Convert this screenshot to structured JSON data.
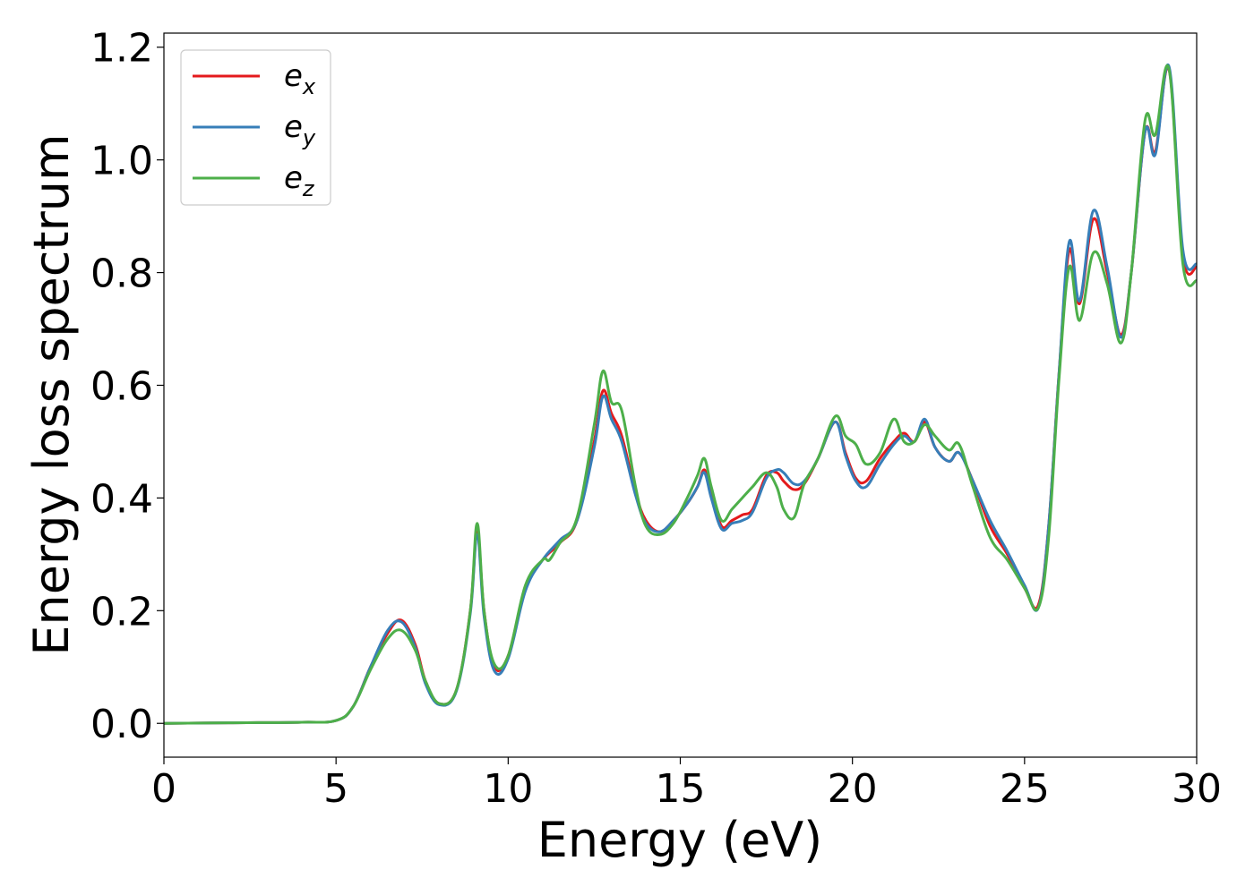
{
  "chart_data": {
    "type": "line",
    "xlabel": "Energy (eV)",
    "ylabel": "Energy loss spectrum",
    "xlim": [
      0,
      30
    ],
    "ylim": [
      -0.06,
      1.225
    ],
    "xticks": [
      0,
      5,
      10,
      15,
      20,
      25,
      30
    ],
    "xtick_labels": [
      "0",
      "5",
      "10",
      "15",
      "20",
      "25",
      "30"
    ],
    "yticks": [
      0.0,
      0.2,
      0.4,
      0.6,
      0.8,
      1.0,
      1.2
    ],
    "ytick_labels": [
      "0.0",
      "0.2",
      "0.4",
      "0.6",
      "0.8",
      "1.0",
      "1.2"
    ],
    "grid": false,
    "legend_position": "top-left",
    "series": [
      {
        "name": "e_x",
        "label_base": "e",
        "label_sub": "x",
        "color": "#e41a1c",
        "x": [
          0,
          2,
          4,
          5,
          5.5,
          6,
          6.5,
          6.9,
          7.3,
          7.6,
          8.0,
          8.5,
          8.9,
          9.1,
          9.3,
          9.6,
          10.0,
          10.5,
          11.0,
          11.5,
          12.0,
          12.5,
          12.75,
          13.0,
          13.3,
          13.7,
          14.0,
          14.4,
          14.8,
          15.2,
          15.5,
          15.7,
          15.9,
          16.2,
          16.5,
          16.8,
          17.1,
          17.5,
          17.8,
          18.0,
          18.3,
          18.6,
          19.0,
          19.5,
          19.8,
          20.1,
          20.4,
          20.8,
          21.2,
          21.5,
          21.8,
          22.1,
          22.4,
          22.8,
          23.1,
          23.5,
          24.0,
          24.5,
          25.0,
          25.4,
          25.7,
          26.0,
          26.3,
          26.6,
          27.0,
          27.4,
          27.8,
          28.1,
          28.5,
          28.8,
          29.2,
          29.6,
          30.0
        ],
        "y": [
          0.0,
          0.001,
          0.002,
          0.005,
          0.03,
          0.1,
          0.16,
          0.183,
          0.14,
          0.075,
          0.035,
          0.06,
          0.2,
          0.34,
          0.2,
          0.1,
          0.12,
          0.24,
          0.29,
          0.32,
          0.36,
          0.5,
          0.59,
          0.55,
          0.51,
          0.41,
          0.36,
          0.34,
          0.36,
          0.39,
          0.42,
          0.45,
          0.41,
          0.35,
          0.36,
          0.37,
          0.38,
          0.44,
          0.445,
          0.43,
          0.415,
          0.425,
          0.47,
          0.535,
          0.48,
          0.435,
          0.43,
          0.47,
          0.5,
          0.515,
          0.5,
          0.535,
          0.49,
          0.465,
          0.48,
          0.43,
          0.35,
          0.3,
          0.24,
          0.21,
          0.35,
          0.62,
          0.84,
          0.745,
          0.895,
          0.8,
          0.69,
          0.8,
          1.05,
          1.015,
          1.16,
          0.83,
          0.81
        ]
      },
      {
        "name": "e_y",
        "label_base": "e",
        "label_sub": "y",
        "color": "#377eb8",
        "x": [
          0,
          2,
          4,
          5,
          5.5,
          6,
          6.5,
          6.9,
          7.3,
          7.6,
          8.0,
          8.5,
          8.9,
          9.1,
          9.3,
          9.6,
          10.0,
          10.5,
          11.0,
          11.5,
          12.0,
          12.5,
          12.75,
          13.0,
          13.3,
          13.7,
          14.0,
          14.4,
          14.8,
          15.2,
          15.5,
          15.7,
          15.9,
          16.2,
          16.5,
          16.8,
          17.1,
          17.5,
          17.8,
          18.0,
          18.3,
          18.6,
          19.0,
          19.5,
          19.8,
          20.1,
          20.4,
          20.8,
          21.2,
          21.5,
          21.8,
          22.1,
          22.4,
          22.8,
          23.1,
          23.5,
          24.0,
          24.5,
          25.0,
          25.4,
          25.7,
          26.0,
          26.3,
          26.6,
          27.0,
          27.4,
          27.8,
          28.1,
          28.5,
          28.8,
          29.2,
          29.6,
          30.0
        ],
        "y": [
          0.0,
          0.001,
          0.002,
          0.005,
          0.03,
          0.1,
          0.165,
          0.18,
          0.135,
          0.07,
          0.033,
          0.058,
          0.195,
          0.335,
          0.19,
          0.093,
          0.115,
          0.235,
          0.29,
          0.325,
          0.36,
          0.49,
          0.58,
          0.54,
          0.5,
          0.405,
          0.355,
          0.34,
          0.36,
          0.39,
          0.42,
          0.445,
          0.4,
          0.345,
          0.355,
          0.36,
          0.375,
          0.435,
          0.45,
          0.445,
          0.425,
          0.43,
          0.47,
          0.535,
          0.475,
          0.43,
          0.42,
          0.46,
          0.495,
          0.51,
          0.5,
          0.54,
          0.49,
          0.465,
          0.48,
          0.43,
          0.36,
          0.305,
          0.245,
          0.205,
          0.35,
          0.62,
          0.855,
          0.75,
          0.91,
          0.81,
          0.685,
          0.8,
          1.05,
          1.01,
          1.165,
          0.84,
          0.815
        ]
      },
      {
        "name": "e_z",
        "label_base": "e",
        "label_sub": "z",
        "color": "#4daf4a",
        "x": [
          0,
          2,
          4,
          5,
          5.5,
          6,
          6.5,
          6.9,
          7.3,
          7.6,
          8.0,
          8.5,
          8.9,
          9.1,
          9.3,
          9.6,
          10.0,
          10.5,
          11.0,
          11.2,
          11.5,
          12.0,
          12.5,
          12.75,
          13.0,
          13.3,
          13.7,
          14.0,
          14.4,
          14.8,
          15.2,
          15.5,
          15.7,
          15.9,
          16.2,
          16.5,
          16.8,
          17.1,
          17.5,
          17.8,
          18.0,
          18.3,
          18.6,
          19.0,
          19.5,
          19.8,
          20.1,
          20.4,
          20.8,
          21.2,
          21.5,
          21.8,
          22.1,
          22.4,
          22.8,
          23.1,
          23.5,
          24.0,
          24.5,
          25.0,
          25.4,
          25.7,
          26.0,
          26.3,
          26.6,
          27.0,
          27.4,
          27.8,
          28.1,
          28.5,
          28.8,
          29.2,
          29.6,
          30.0
        ],
        "y": [
          0.0,
          0.001,
          0.002,
          0.005,
          0.03,
          0.095,
          0.15,
          0.165,
          0.13,
          0.075,
          0.035,
          0.06,
          0.2,
          0.355,
          0.2,
          0.105,
          0.12,
          0.245,
          0.29,
          0.29,
          0.32,
          0.365,
          0.53,
          0.625,
          0.57,
          0.555,
          0.42,
          0.35,
          0.335,
          0.355,
          0.4,
          0.44,
          0.47,
          0.42,
          0.36,
          0.38,
          0.4,
          0.42,
          0.445,
          0.42,
          0.38,
          0.365,
          0.425,
          0.47,
          0.545,
          0.51,
          0.495,
          0.46,
          0.48,
          0.54,
          0.5,
          0.5,
          0.53,
          0.51,
          0.485,
          0.495,
          0.42,
          0.33,
          0.29,
          0.24,
          0.205,
          0.33,
          0.61,
          0.81,
          0.715,
          0.835,
          0.78,
          0.675,
          0.8,
          1.07,
          1.045,
          1.16,
          0.815,
          0.785
        ]
      }
    ]
  }
}
